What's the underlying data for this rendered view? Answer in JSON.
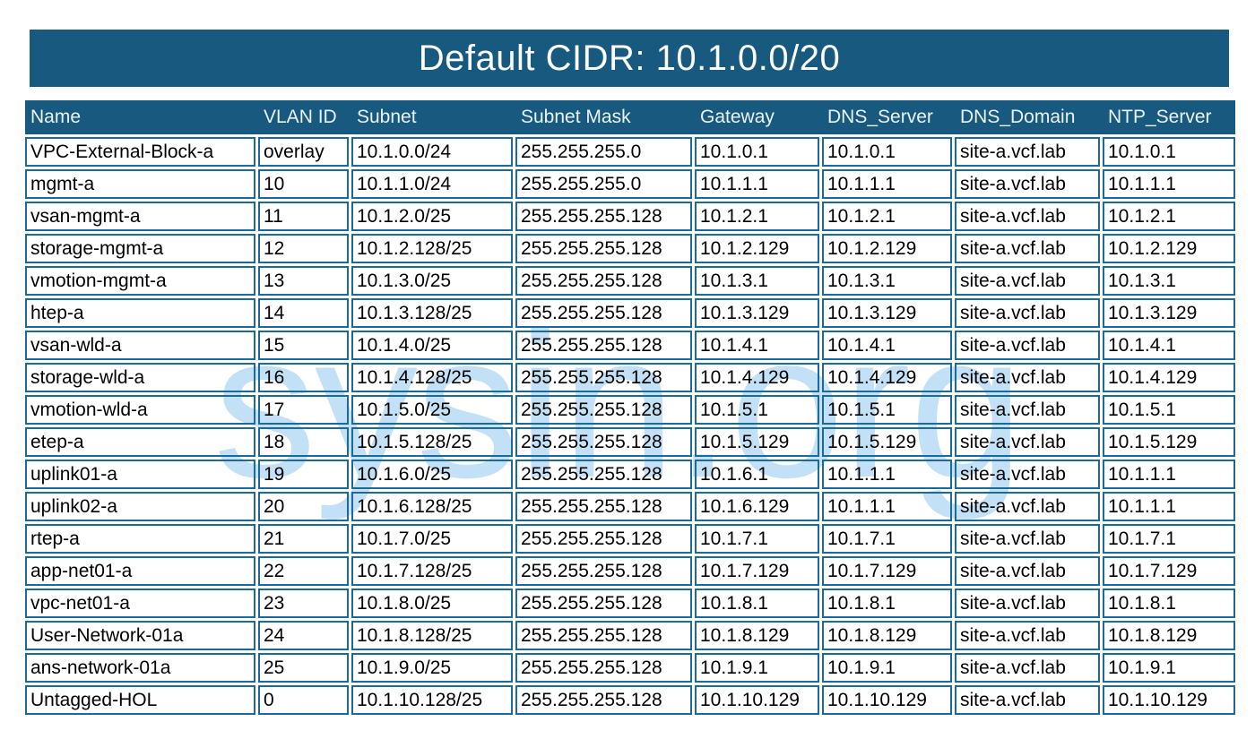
{
  "title": "Default CIDR: 10.1.0.0/20",
  "watermark": "sysin.org",
  "colors": {
    "banner_background": "#17597F",
    "header_background": "#17597F",
    "header_text": "#EAF3FA",
    "cell_border": "#1C6A99",
    "body_text": "#000000",
    "watermark_text": "#C3E1F6",
    "page_background": "#FFFFFF"
  },
  "table": {
    "columns": [
      "Name",
      "VLAN ID",
      "Subnet",
      "Subnet Mask",
      "Gateway",
      "DNS_Server",
      "DNS_Domain",
      "NTP_Server"
    ],
    "rows": [
      [
        "VPC-External-Block-a",
        "overlay",
        "10.1.0.0/24",
        "255.255.255.0",
        "10.1.0.1",
        "10.1.0.1",
        "site-a.vcf.lab",
        "10.1.0.1"
      ],
      [
        "mgmt-a",
        "10",
        "10.1.1.0/24",
        "255.255.255.0",
        "10.1.1.1",
        "10.1.1.1",
        "site-a.vcf.lab",
        "10.1.1.1"
      ],
      [
        "vsan-mgmt-a",
        "11",
        "10.1.2.0/25",
        "255.255.255.128",
        "10.1.2.1",
        "10.1.2.1",
        "site-a.vcf.lab",
        "10.1.2.1"
      ],
      [
        "storage-mgmt-a",
        "12",
        "10.1.2.128/25",
        "255.255.255.128",
        "10.1.2.129",
        "10.1.2.129",
        "site-a.vcf.lab",
        "10.1.2.129"
      ],
      [
        "vmotion-mgmt-a",
        "13",
        "10.1.3.0/25",
        "255.255.255.128",
        "10.1.3.1",
        "10.1.3.1",
        "site-a.vcf.lab",
        "10.1.3.1"
      ],
      [
        "htep-a",
        "14",
        "10.1.3.128/25",
        "255.255.255.128",
        "10.1.3.129",
        "10.1.3.129",
        "site-a.vcf.lab",
        "10.1.3.129"
      ],
      [
        "vsan-wld-a",
        "15",
        "10.1.4.0/25",
        "255.255.255.128",
        "10.1.4.1",
        "10.1.4.1",
        "site-a.vcf.lab",
        "10.1.4.1"
      ],
      [
        "storage-wld-a",
        "16",
        "10.1.4.128/25",
        "255.255.255.128",
        "10.1.4.129",
        "10.1.4.129",
        "site-a.vcf.lab",
        "10.1.4.129"
      ],
      [
        "vmotion-wld-a",
        "17",
        "10.1.5.0/25",
        "255.255.255.128",
        "10.1.5.1",
        "10.1.5.1",
        "site-a.vcf.lab",
        "10.1.5.1"
      ],
      [
        "etep-a",
        "18",
        "10.1.5.128/25",
        "255.255.255.128",
        "10.1.5.129",
        "10.1.5.129",
        "site-a.vcf.lab",
        "10.1.5.129"
      ],
      [
        "uplink01-a",
        "19",
        "10.1.6.0/25",
        "255.255.255.128",
        "10.1.6.1",
        "10.1.1.1",
        "site-a.vcf.lab",
        "10.1.1.1"
      ],
      [
        "uplink02-a",
        "20",
        "10.1.6.128/25",
        "255.255.255.128",
        "10.1.6.129",
        "10.1.1.1",
        "site-a.vcf.lab",
        "10.1.1.1"
      ],
      [
        "rtep-a",
        "21",
        "10.1.7.0/25",
        "255.255.255.128",
        "10.1.7.1",
        "10.1.7.1",
        "site-a.vcf.lab",
        "10.1.7.1"
      ],
      [
        "app-net01-a",
        "22",
        "10.1.7.128/25",
        "255.255.255.128",
        "10.1.7.129",
        "10.1.7.129",
        "site-a.vcf.lab",
        "10.1.7.129"
      ],
      [
        "vpc-net01-a",
        "23",
        "10.1.8.0/25",
        "255.255.255.128",
        "10.1.8.1",
        "10.1.8.1",
        "site-a.vcf.lab",
        "10.1.8.1"
      ],
      [
        "User-Network-01a",
        "24",
        "10.1.8.128/25",
        "255.255.255.128",
        "10.1.8.129",
        "10.1.8.129",
        "site-a.vcf.lab",
        "10.1.8.129"
      ],
      [
        "ans-network-01a",
        "25",
        "10.1.9.0/25",
        "255.255.255.128",
        "10.1.9.1",
        "10.1.9.1",
        "site-a.vcf.lab",
        "10.1.9.1"
      ],
      [
        "Untagged-HOL",
        "0",
        "10.1.10.128/25",
        "255.255.255.128",
        "10.1.10.129",
        "10.1.10.129",
        "site-a.vcf.lab",
        "10.1.10.129"
      ]
    ]
  }
}
